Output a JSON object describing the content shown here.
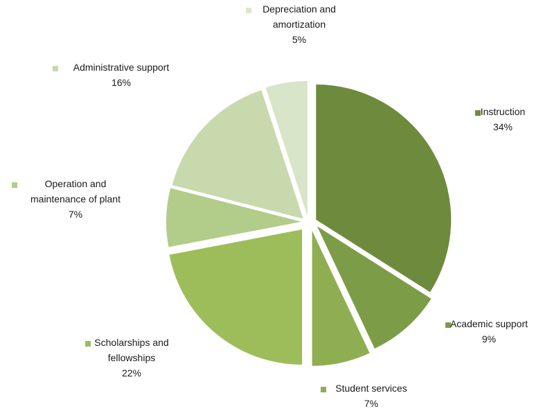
{
  "chart_data": {
    "type": "pie",
    "title": "",
    "legend": "none",
    "slices": [
      {
        "lines": [
          "Instruction"
        ],
        "pct_label": "34%",
        "value": 34,
        "color": "#6e8b3d"
      },
      {
        "lines": [
          "Academic support"
        ],
        "pct_label": "9%",
        "value": 9,
        "color": "#7d9c47"
      },
      {
        "lines": [
          "Student services"
        ],
        "pct_label": "7%",
        "value": 7,
        "color": "#8fae52"
      },
      {
        "lines": [
          "Scholarships and",
          "fellowships"
        ],
        "pct_label": "22%",
        "value": 22,
        "color": "#9dbd5a"
      },
      {
        "lines": [
          "Operation and",
          "maintenance of plant"
        ],
        "pct_label": "7%",
        "value": 7,
        "color": "#b2cc8a"
      },
      {
        "lines": [
          "Administrative support"
        ],
        "pct_label": "16%",
        "value": 16,
        "color": "#c8d9ad"
      },
      {
        "lines": [
          "Depreciation and",
          "amortization"
        ],
        "pct_label": "5%",
        "value": 5,
        "color": "#d9e5c9"
      }
    ]
  }
}
